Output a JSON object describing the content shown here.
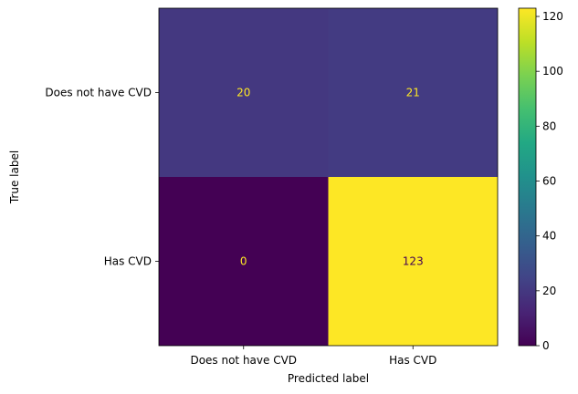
{
  "chart_data": {
    "type": "heatmap",
    "xlabel": "Predicted label",
    "ylabel": "True label",
    "x_categories": [
      "Does not have CVD",
      "Has CVD"
    ],
    "y_categories": [
      "Does not have CVD",
      "Has CVD"
    ],
    "values": [
      [
        20,
        21
      ],
      [
        0,
        123
      ]
    ],
    "colorbar": {
      "colormap": "viridis",
      "vmin": 0,
      "vmax": 123,
      "ticks": [
        0,
        20,
        40,
        60,
        80,
        100,
        120
      ]
    },
    "text_color_dark_cell": "#fde725",
    "text_color_bright_cell": "#440154"
  }
}
